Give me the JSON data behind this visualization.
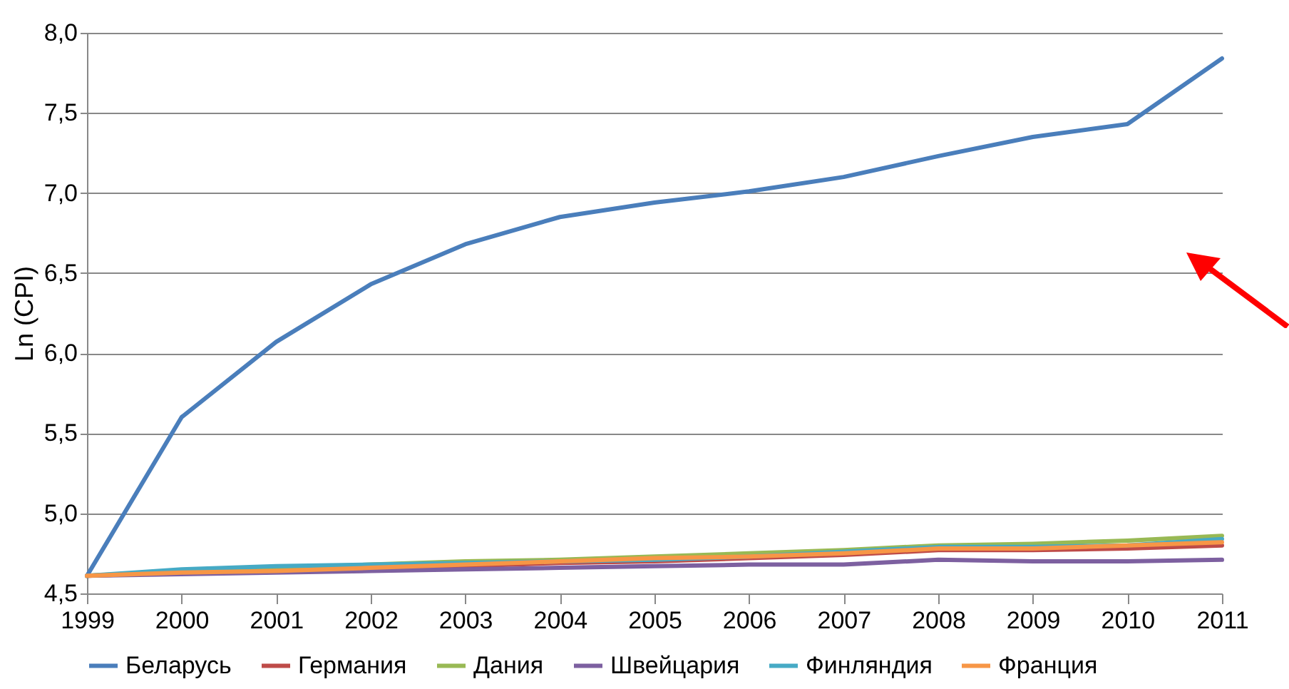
{
  "chart_data": {
    "type": "line",
    "ylabel": "Ln (CPI)",
    "categories": [
      "1999",
      "2000",
      "2001",
      "2002",
      "2003",
      "2004",
      "2005",
      "2006",
      "2007",
      "2008",
      "2009",
      "2010",
      "2011"
    ],
    "series": [
      {
        "name": "Беларусь",
        "color": "#4a7ebb",
        "values": [
          4.61,
          5.6,
          6.07,
          6.43,
          6.68,
          6.85,
          6.94,
          7.01,
          7.1,
          7.23,
          7.35,
          7.43,
          7.84
        ]
      },
      {
        "name": "Германия",
        "color": "#be4b48",
        "values": [
          4.61,
          4.63,
          4.65,
          4.66,
          4.67,
          4.69,
          4.7,
          4.72,
          4.74,
          4.77,
          4.77,
          4.78,
          4.8
        ]
      },
      {
        "name": "Дания",
        "color": "#98b954",
        "values": [
          4.61,
          4.64,
          4.66,
          4.68,
          4.7,
          4.71,
          4.73,
          4.75,
          4.77,
          4.8,
          4.81,
          4.83,
          4.86
        ]
      },
      {
        "name": "Швейцария",
        "color": "#7d60a0",
        "values": [
          4.61,
          4.62,
          4.63,
          4.64,
          4.65,
          4.66,
          4.67,
          4.68,
          4.68,
          4.71,
          4.7,
          4.7,
          4.71
        ]
      },
      {
        "name": "Финляндия",
        "color": "#46aac5",
        "values": [
          4.61,
          4.65,
          4.67,
          4.68,
          4.69,
          4.7,
          4.71,
          4.73,
          4.76,
          4.79,
          4.79,
          4.8,
          4.84
        ]
      },
      {
        "name": "Франция",
        "color": "#f79646",
        "values": [
          4.61,
          4.63,
          4.64,
          4.66,
          4.68,
          4.7,
          4.72,
          4.73,
          4.75,
          4.78,
          4.78,
          4.8,
          4.82
        ]
      }
    ],
    "ylim": [
      4.5,
      8.0
    ],
    "yticks": [
      {
        "value": 4.5,
        "label": "4,5"
      },
      {
        "value": 5.0,
        "label": "5,0"
      },
      {
        "value": 5.5,
        "label": "5,5"
      },
      {
        "value": 6.0,
        "label": "6,0"
      },
      {
        "value": 6.5,
        "label": "6,5"
      },
      {
        "value": 7.0,
        "label": "7,0"
      },
      {
        "value": 7.5,
        "label": "7,5"
      },
      {
        "value": 8.0,
        "label": "8,0"
      }
    ],
    "grid": "y",
    "legend": "bottom",
    "marker": "none",
    "line_style": "solid"
  }
}
